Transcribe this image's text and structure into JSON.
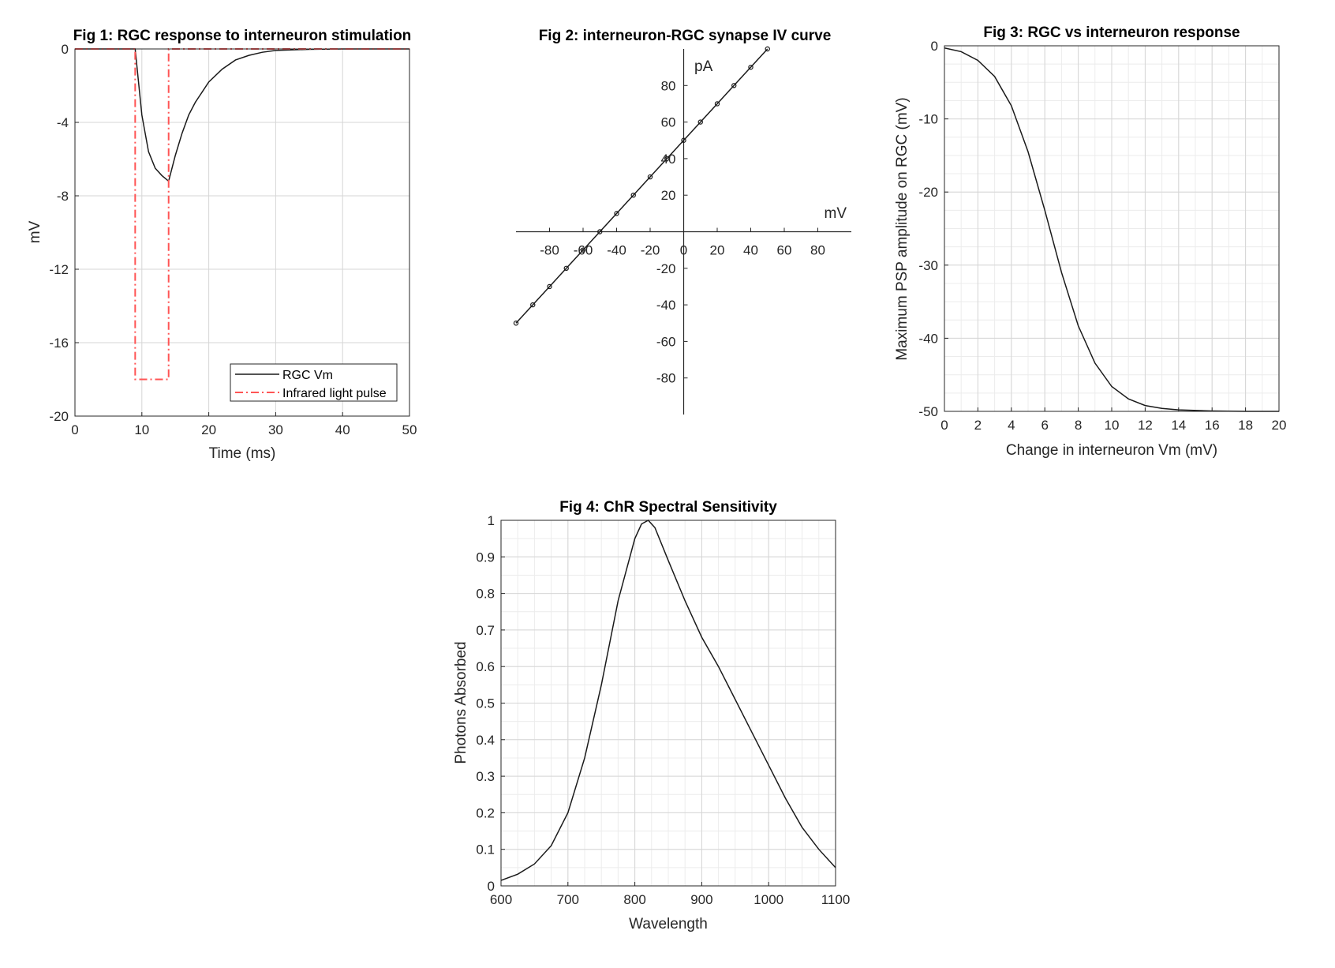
{
  "chart_data": [
    {
      "id": "fig1",
      "type": "line",
      "title": "Fig 1: RGC response to interneuron stimulation",
      "xlabel": "Time (ms)",
      "ylabel": "mV",
      "xlim": [
        0,
        50
      ],
      "ylim": [
        -20,
        0
      ],
      "xticks": [
        "0",
        "10",
        "20",
        "30",
        "40",
        "50"
      ],
      "yticks": [
        "0",
        "-4",
        "-8",
        "-12",
        "-16",
        "-20"
      ],
      "grid": true,
      "legend_position": "bottom-right",
      "series": [
        {
          "name": "RGC Vm",
          "style": "solid",
          "color": "#1a1a1a",
          "x": [
            0,
            9,
            9.5,
            10,
            11,
            12,
            13,
            14,
            15,
            16,
            17,
            18,
            20,
            22,
            24,
            26,
            28,
            30,
            35,
            40,
            45,
            50
          ],
          "y": [
            0,
            0,
            -1.8,
            -3.6,
            -5.6,
            -6.5,
            -6.9,
            -7.2,
            -5.8,
            -4.6,
            -3.6,
            -2.9,
            -1.8,
            -1.1,
            -0.6,
            -0.35,
            -0.18,
            -0.08,
            -0.02,
            0,
            0,
            0
          ]
        },
        {
          "name": "Infrared light pulse",
          "style": "dashdot",
          "color": "#ff5555",
          "x": [
            0,
            9,
            9,
            14,
            14,
            50
          ],
          "y": [
            0,
            0,
            -18,
            -18,
            0,
            0
          ]
        }
      ]
    },
    {
      "id": "fig2",
      "type": "line",
      "title": "Fig 2: interneuron-RGC synapse IV curve",
      "xlabel": "mV",
      "ylabel": "pA",
      "xlim": [
        -100,
        100
      ],
      "ylim": [
        -100,
        100
      ],
      "xticks": [
        "-80",
        "-60",
        "-40",
        "-20",
        "0",
        "20",
        "40",
        "60",
        "80"
      ],
      "yticks": [
        "80",
        "60",
        "40",
        "20",
        "-20",
        "-40",
        "-60",
        "-80"
      ],
      "grid": false,
      "markers": "circle",
      "series": [
        {
          "name": "",
          "style": "solid",
          "color": "#1a1a1a",
          "x": [
            -100,
            -90,
            -80,
            -70,
            -60,
            -50,
            -40,
            -30,
            -20,
            -10,
            0,
            10,
            20,
            30,
            40,
            50
          ],
          "y": [
            -50,
            -40,
            -30,
            -20,
            -10,
            0,
            10,
            20,
            30,
            40,
            50,
            60,
            70,
            80,
            90,
            100
          ]
        }
      ]
    },
    {
      "id": "fig3",
      "type": "line",
      "title": "Fig 3: RGC vs interneuron response",
      "xlabel": "Change in interneuron Vm (mV)",
      "ylabel": "Maximum PSP amplitude on RGC (mV)",
      "xlim": [
        0,
        20
      ],
      "ylim": [
        -50,
        0
      ],
      "xticks": [
        "0",
        "2",
        "4",
        "6",
        "8",
        "10",
        "12",
        "14",
        "16",
        "18",
        "20"
      ],
      "yticks": [
        "0",
        "-10",
        "-20",
        "-30",
        "-40",
        "-50"
      ],
      "grid": true,
      "series": [
        {
          "name": "",
          "style": "solid",
          "color": "#1a1a1a",
          "x": [
            0,
            1,
            2,
            3,
            4,
            5,
            6,
            7,
            8,
            9,
            10,
            11,
            12,
            13,
            14,
            16,
            18,
            20
          ],
          "y": [
            -0.3,
            -0.8,
            -2,
            -4.2,
            -8.2,
            -14.5,
            -22.5,
            -31,
            -38.3,
            -43.4,
            -46.6,
            -48.3,
            -49.2,
            -49.6,
            -49.8,
            -49.95,
            -50,
            -50
          ]
        }
      ]
    },
    {
      "id": "fig4",
      "type": "line",
      "title": "Fig 4: ChR Spectral Sensitivity",
      "xlabel": "Wavelength",
      "ylabel": "Photons Absorbed",
      "xlim": [
        600,
        1100
      ],
      "ylim": [
        0,
        1
      ],
      "xticks": [
        "600",
        "700",
        "800",
        "900",
        "1000",
        "1100"
      ],
      "yticks": [
        "0",
        "0.1",
        "0.2",
        "0.3",
        "0.4",
        "0.5",
        "0.6",
        "0.7",
        "0.8",
        "0.9",
        "1"
      ],
      "grid": true,
      "series": [
        {
          "name": "",
          "style": "solid",
          "color": "#1a1a1a",
          "x": [
            600,
            625,
            650,
            675,
            700,
            725,
            750,
            775,
            800,
            810,
            820,
            830,
            850,
            875,
            900,
            925,
            950,
            975,
            1000,
            1025,
            1050,
            1075,
            1100
          ],
          "y": [
            0.015,
            0.032,
            0.06,
            0.11,
            0.2,
            0.35,
            0.55,
            0.78,
            0.95,
            0.99,
            1.0,
            0.98,
            0.89,
            0.78,
            0.68,
            0.6,
            0.51,
            0.42,
            0.33,
            0.24,
            0.16,
            0.1,
            0.05
          ]
        }
      ]
    }
  ]
}
